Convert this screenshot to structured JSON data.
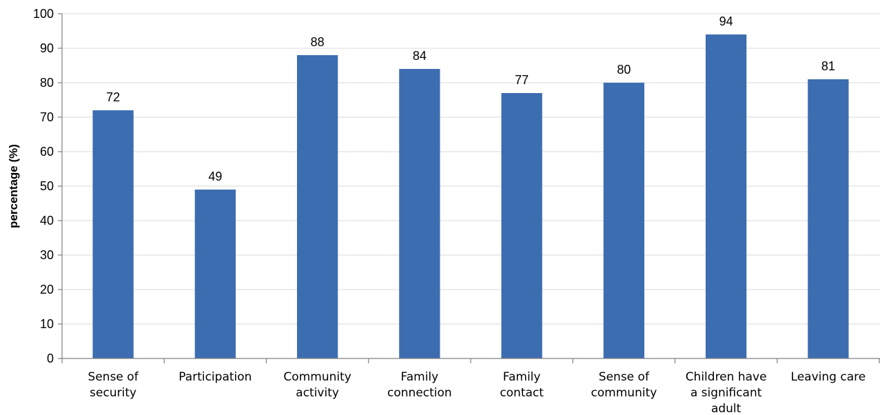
{
  "chart_data": {
    "type": "bar",
    "categories": [
      [
        "Sense of",
        "security"
      ],
      [
        "Participation"
      ],
      [
        "Community",
        "activity"
      ],
      [
        "Family",
        "connection"
      ],
      [
        "Family",
        "contact"
      ],
      [
        "Sense of",
        "community"
      ],
      [
        "Children have",
        "a significant",
        "adult"
      ],
      [
        "Leaving care"
      ]
    ],
    "values": [
      72,
      49,
      88,
      84,
      77,
      80,
      94,
      81
    ],
    "title": "",
    "xlabel": "",
    "ylabel": "percentage (%)",
    "ylim": [
      0,
      100
    ],
    "yticks": [
      0,
      10,
      20,
      30,
      40,
      50,
      60,
      70,
      80,
      90,
      100
    ],
    "grid": "horizontal",
    "legend": "none",
    "colors": {
      "bar": "#3d6db1",
      "grid": "#d9d9d9",
      "axis": "#808080",
      "text": "#000000"
    }
  }
}
